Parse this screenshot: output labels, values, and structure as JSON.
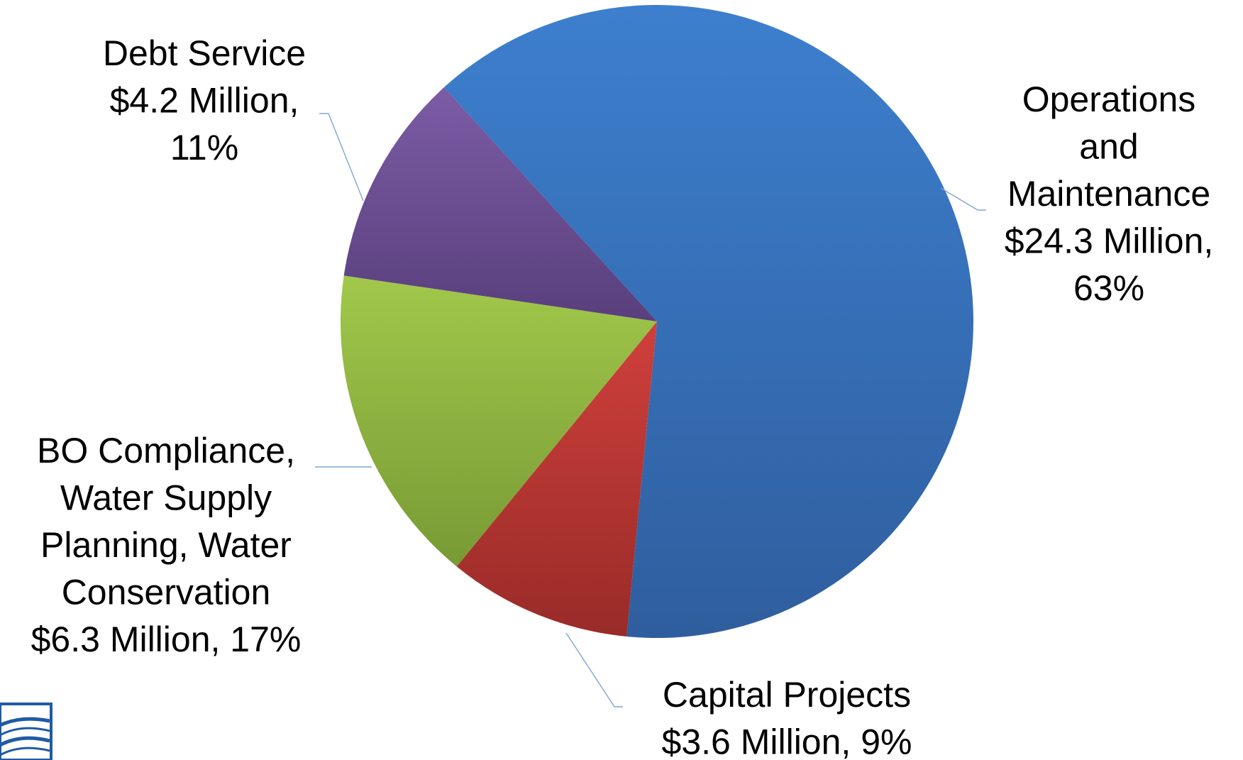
{
  "chart_data": {
    "type": "pie",
    "slices": [
      {
        "key": "operations",
        "name": "Operations and Maintenance",
        "value": 24.3,
        "percent": 63,
        "label_lines": [
          "Operations",
          "and",
          "Maintenance",
          "$24.3 Million,",
          "63%"
        ],
        "color_top": "#3d7fce",
        "color_bottom": "#2f5e9e"
      },
      {
        "key": "capital",
        "name": "Capital Projects",
        "value": 3.6,
        "percent": 9,
        "label_lines": [
          "Capital Projects",
          "$3.6 Million, 9%"
        ],
        "color_top": "#d0403c",
        "color_bottom": "#982b28"
      },
      {
        "key": "bo_compliance",
        "name": "BO Compliance, Water Supply Planning, Water Conservation",
        "value": 6.3,
        "percent": 17,
        "label_lines": [
          "BO Compliance,",
          "Water Supply",
          "Planning, Water",
          "Conservation",
          "$6.3 Million, 17%"
        ],
        "color_top": "#a1c84b",
        "color_bottom": "#789a35"
      },
      {
        "key": "debt",
        "name": "Debt Service",
        "value": 4.2,
        "percent": 11,
        "label_lines": [
          "Debt Service",
          "$4.2 Million,",
          "11%"
        ],
        "color_top": "#7c5ca6",
        "color_bottom": "#593f7c"
      }
    ],
    "units": "Million",
    "legend": "none",
    "data_labels": "outside"
  },
  "logo": {
    "icon": "wave-logo-icon",
    "color": "#1f5aa6"
  }
}
